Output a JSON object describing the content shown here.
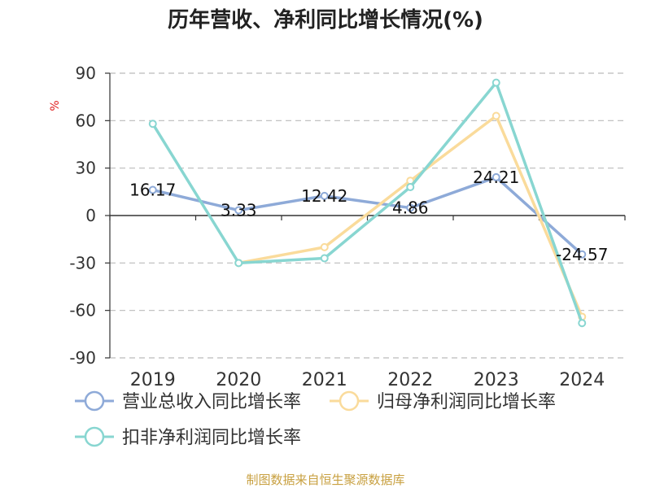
{
  "chart_data": {
    "type": "line",
    "title": "历年营收、净利同比增长情况(%)",
    "ylabel": "%",
    "categories": [
      "2019",
      "2020",
      "2021",
      "2022",
      "2023",
      "2024"
    ],
    "ylim": [
      -90,
      90
    ],
    "yticks": [
      90,
      60,
      30,
      0,
      -30,
      -60,
      -90
    ],
    "grid": true,
    "legend_position": "bottom-left",
    "series": [
      {
        "name": "营业总收入同比增长率",
        "color": "#8eaad8",
        "values": [
          16.17,
          3.33,
          12.42,
          4.86,
          24.21,
          -24.57
        ],
        "data_labels": [
          "16.17",
          "3.33",
          "12.42",
          "4.86",
          "24.21",
          "-24.57"
        ]
      },
      {
        "name": "归母净利润同比增长率",
        "color": "#fadb9b",
        "values": [
          null,
          -30,
          -20,
          22,
          63,
          -64
        ]
      },
      {
        "name": "扣非净利润同比增长率",
        "color": "#88d6d1",
        "values": [
          58,
          -30,
          -27,
          18,
          84,
          -68
        ]
      }
    ]
  },
  "source_text": "制图数据来自恒生聚源数据库",
  "colors": {
    "axis": "#333333",
    "grid": "#bbbbbb",
    "unit": "#e02020",
    "source": "#c8a040"
  }
}
